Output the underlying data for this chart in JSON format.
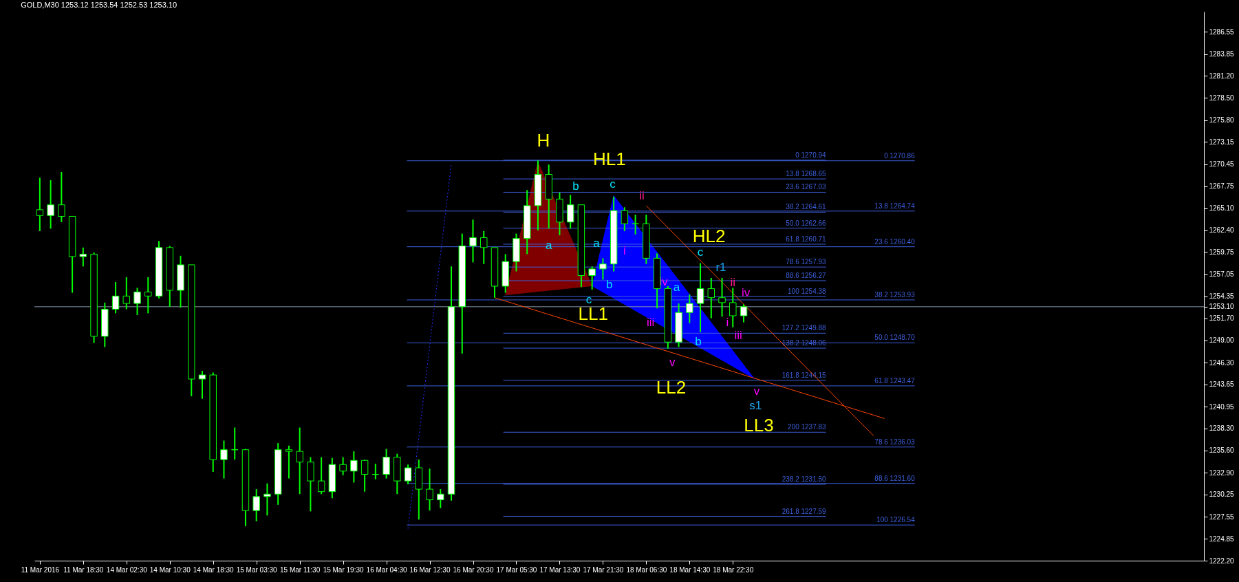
{
  "chart_data": {
    "type": "candlestick",
    "title": "GOLD,M30  1253.12 1253.54 1252.53 1253.10",
    "color": "#00ff00",
    "categories": [
      "11 Mar 2016",
      null,
      null,
      null,
      "11 Mar 18:30",
      null,
      null,
      null,
      "14 Mar 02:30",
      null,
      null,
      null,
      "14 Mar 10:30",
      null,
      null,
      null,
      "14 Mar 18:30",
      null,
      null,
      null,
      "15 Mar 03:30",
      null,
      null,
      null,
      "15 Mar 11:30",
      null,
      null,
      null,
      "15 Mar 19:30",
      null,
      null,
      null,
      "16 Mar 04:30",
      null,
      null,
      null,
      "16 Mar 12:30",
      null,
      null,
      null,
      "16 Mar 20:30",
      null,
      null,
      null,
      "17 Mar 05:30",
      null,
      null,
      null,
      "17 Mar 13:30",
      null,
      null,
      null,
      "17 Mar 21:30",
      null,
      null,
      null,
      "18 Mar 06:30",
      null,
      null,
      null,
      "18 Mar 14:30",
      null,
      null,
      null,
      "18 Mar 22:30",
      null,
      null,
      null,
      null,
      null,
      null,
      null,
      null,
      null,
      null,
      null,
      null,
      null,
      null,
      null,
      null,
      null,
      null,
      null,
      null,
      null,
      null,
      null,
      null,
      null,
      null,
      null,
      null,
      null,
      null,
      null,
      null,
      null,
      null,
      null,
      null,
      null,
      null,
      null,
      null,
      null,
      null,
      null
    ],
    "ohlc": [
      [
        1264.9,
        1268.8,
        1262.3,
        1264.2
      ],
      [
        1264.2,
        1268.5,
        1262.6,
        1265.5
      ],
      [
        1265.5,
        1269.5,
        1263.4,
        1264.1
      ],
      [
        1264.1,
        1264.1,
        1254.8,
        1259.2
      ],
      [
        1259.2,
        1260.3,
        1258.0,
        1259.5
      ],
      [
        1259.5,
        1259.7,
        1248.7,
        1249.5
      ],
      [
        1249.5,
        1253.6,
        1248.2,
        1252.8
      ],
      [
        1252.8,
        1256.1,
        1252.3,
        1254.4
      ],
      [
        1254.4,
        1256.7,
        1252.8,
        1253.5
      ],
      [
        1253.5,
        1255.4,
        1252.1,
        1254.9
      ],
      [
        1254.9,
        1256.7,
        1252.3,
        1254.4
      ],
      [
        1254.4,
        1261.1,
        1254.1,
        1260.3
      ],
      [
        1260.3,
        1260.5,
        1253.1,
        1255.1
      ],
      [
        1255.1,
        1259.3,
        1253.0,
        1258.2
      ],
      [
        1258.2,
        1258.2,
        1242.2,
        1244.3
      ],
      [
        1244.3,
        1245.3,
        1241.9,
        1244.8
      ],
      [
        1244.8,
        1245.1,
        1233.0,
        1234.5
      ],
      [
        1234.5,
        1236.8,
        1232.2,
        1235.7
      ],
      [
        1235.7,
        1238.4,
        1234.5,
        1235.7
      ],
      [
        1235.7,
        1235.8,
        1226.4,
        1228.3
      ],
      [
        1228.3,
        1230.9,
        1227.0,
        1230.0
      ],
      [
        1230.0,
        1231.6,
        1227.7,
        1230.3
      ],
      [
        1230.3,
        1236.5,
        1229.0,
        1235.7
      ],
      [
        1235.7,
        1236.2,
        1232.2,
        1235.5
      ],
      [
        1235.5,
        1238.4,
        1230.3,
        1234.2
      ],
      [
        1234.2,
        1234.8,
        1228.2,
        1231.9
      ],
      [
        1231.9,
        1234.8,
        1230.3,
        1230.6
      ],
      [
        1230.6,
        1234.7,
        1229.8,
        1233.9
      ],
      [
        1233.9,
        1234.8,
        1232.6,
        1233.1
      ],
      [
        1233.1,
        1235.5,
        1231.7,
        1234.4
      ],
      [
        1234.4,
        1234.5,
        1230.6,
        1232.7
      ],
      [
        1232.7,
        1234.0,
        1232.1,
        1232.7
      ],
      [
        1232.7,
        1235.8,
        1232.2,
        1234.8
      ],
      [
        1234.8,
        1235.2,
        1230.3,
        1231.9
      ],
      [
        1231.9,
        1233.9,
        1231.5,
        1233.5
      ],
      [
        1233.5,
        1234.5,
        1227.2,
        1230.9
      ],
      [
        1230.9,
        1233.4,
        1228.3,
        1229.6
      ],
      [
        1229.6,
        1230.9,
        1228.6,
        1230.3
      ],
      [
        1230.3,
        1258.0,
        1229.5,
        1253.1
      ],
      [
        1253.1,
        1262.0,
        1247.4,
        1260.5
      ],
      [
        1260.5,
        1263.7,
        1258.5,
        1261.5
      ],
      [
        1261.5,
        1262.3,
        1258.3,
        1260.3
      ],
      [
        1260.3,
        1260.3,
        1254.2,
        1255.6
      ],
      [
        1255.6,
        1259.5,
        1254.8,
        1258.6
      ],
      [
        1258.6,
        1262.0,
        1257.4,
        1261.4
      ],
      [
        1261.4,
        1267.3,
        1259.5,
        1265.4
      ],
      [
        1265.4,
        1270.9,
        1262.4,
        1269.2
      ],
      [
        1269.2,
        1270.4,
        1262.6,
        1266.2
      ],
      [
        1266.2,
        1267.0,
        1261.8,
        1263.4
      ],
      [
        1263.4,
        1266.7,
        1262.6,
        1265.5
      ],
      [
        1265.5,
        1265.5,
        1255.5,
        1256.9
      ],
      [
        1256.9,
        1258.0,
        1255.2,
        1257.7
      ],
      [
        1257.7,
        1259.0,
        1256.4,
        1258.3
      ],
      [
        1258.3,
        1266.5,
        1257.4,
        1264.8
      ],
      [
        1264.8,
        1265.2,
        1262.3,
        1263.2
      ],
      [
        1263.2,
        1264.3,
        1261.9,
        1263.2
      ],
      [
        1263.2,
        1264.3,
        1258.3,
        1259.0
      ],
      [
        1259.0,
        1259.6,
        1252.9,
        1255.3
      ],
      [
        1255.3,
        1255.6,
        1248.0,
        1248.8
      ],
      [
        1248.8,
        1253.5,
        1248.2,
        1252.4
      ],
      [
        1252.4,
        1254.6,
        1251.1,
        1253.5
      ],
      [
        1253.5,
        1258.4,
        1250.0,
        1255.3
      ],
      [
        1255.3,
        1256.6,
        1251.7,
        1254.2
      ],
      [
        1254.2,
        1256.6,
        1251.9,
        1253.6
      ],
      [
        1253.6,
        1255.4,
        1250.6,
        1252.0
      ],
      [
        1252.0,
        1253.4,
        1251.2,
        1253.1
      ],
      null,
      null,
      null,
      null,
      null,
      null,
      null,
      null,
      null,
      null,
      null,
      null,
      null,
      null,
      null,
      null,
      null,
      null,
      null,
      null,
      null,
      null,
      null,
      null,
      null,
      null,
      null,
      null,
      null,
      null,
      null,
      null,
      null,
      null,
      null,
      null,
      null,
      null,
      null,
      null,
      null,
      null
    ],
    "series": [
      {
        "type": "area",
        "color": "#800000",
        "values": [
          null,
          null,
          null,
          null,
          null,
          null,
          null,
          null,
          null,
          null,
          null,
          null,
          null,
          null,
          null,
          null,
          null,
          null,
          null,
          null,
          null,
          null,
          null,
          null,
          null,
          null,
          null,
          null,
          null,
          null,
          null,
          null,
          null,
          null,
          null,
          null,
          null,
          null,
          null,
          null,
          null,
          null,
          null,
          1254.5,
          null,
          null,
          1270.7,
          null,
          null,
          null,
          null,
          1255.6,
          null,
          null,
          null,
          null,
          null,
          null,
          null,
          null,
          null,
          null,
          null,
          null,
          null,
          null,
          null,
          null,
          null,
          null,
          null,
          null,
          null,
          null,
          null,
          null,
          null,
          null,
          null,
          null,
          null,
          null,
          null,
          null,
          null,
          null,
          null,
          null,
          null,
          null,
          null,
          null,
          null,
          null,
          null,
          null,
          null,
          null,
          null,
          null,
          null,
          null,
          null,
          null,
          null,
          null,
          null,
          null
        ]
      },
      {
        "type": "area",
        "color": "#0000ff",
        "values": [
          null,
          null,
          null,
          null,
          null,
          null,
          null,
          null,
          null,
          null,
          null,
          null,
          null,
          null,
          null,
          null,
          null,
          null,
          null,
          null,
          null,
          null,
          null,
          null,
          null,
          null,
          null,
          null,
          null,
          null,
          null,
          null,
          null,
          null,
          null,
          null,
          null,
          null,
          null,
          null,
          null,
          null,
          null,
          null,
          null,
          null,
          null,
          null,
          null,
          null,
          null,
          1255.6,
          null,
          1266.6,
          null,
          null,
          null,
          null,
          null,
          null,
          null,
          null,
          null,
          null,
          null,
          null,
          1244.3,
          null,
          null,
          null,
          null,
          null,
          null,
          null,
          null,
          null,
          null,
          null,
          null,
          null,
          null,
          null,
          null,
          null,
          null,
          null,
          null,
          null,
          null,
          null,
          null,
          null,
          null,
          null,
          null,
          null,
          null,
          null,
          null,
          null,
          null,
          null,
          null,
          null,
          null,
          null,
          null,
          null
        ]
      },
      {
        "type": "line",
        "color": "#2233ff",
        "line_style": "dotted",
        "values": [
          null,
          null,
          null,
          null,
          null,
          null,
          null,
          null,
          null,
          null,
          null,
          null,
          null,
          null,
          null,
          null,
          null,
          null,
          null,
          null,
          null,
          null,
          null,
          null,
          null,
          null,
          null,
          null,
          null,
          null,
          null,
          null,
          null,
          null,
          1226.1,
          null,
          null,
          null,
          1270.5,
          null,
          null,
          null,
          null,
          null,
          null,
          null,
          null,
          null,
          null,
          null,
          null,
          null,
          null,
          null,
          null,
          null,
          null,
          null,
          null,
          null,
          null,
          null,
          null,
          null,
          null,
          null,
          null,
          null,
          null,
          null,
          null,
          null,
          null,
          null,
          null,
          null,
          null,
          null,
          null,
          null,
          null,
          null,
          null,
          null,
          null,
          null,
          null,
          null,
          null,
          null,
          null,
          null,
          null,
          null,
          null,
          null,
          null,
          null,
          null,
          null,
          null,
          null,
          null,
          null,
          null,
          null,
          null,
          null
        ]
      },
      {
        "type": "line",
        "color": "#ff4500",
        "line_style": "solid",
        "values": [
          null,
          null,
          null,
          null,
          null,
          null,
          null,
          null,
          null,
          null,
          null,
          null,
          null,
          null,
          null,
          null,
          null,
          null,
          null,
          null,
          null,
          null,
          null,
          null,
          null,
          null,
          null,
          null,
          null,
          null,
          null,
          null,
          null,
          null,
          null,
          null,
          null,
          null,
          null,
          null,
          null,
          null,
          1254.2,
          null,
          null,
          null,
          null,
          null,
          null,
          null,
          null,
          null,
          null,
          null,
          null,
          null,
          null,
          null,
          null,
          null,
          null,
          null,
          null,
          null,
          null,
          null,
          null,
          null,
          null,
          null,
          null,
          null,
          null,
          null,
          null,
          null,
          null,
          null,
          1239.5,
          null,
          null,
          null,
          null,
          null,
          null,
          null,
          null,
          null,
          null,
          null,
          null,
          null,
          null,
          null,
          null,
          null,
          null,
          null,
          null,
          null,
          null,
          null,
          null,
          null,
          null,
          null,
          null,
          null
        ]
      },
      {
        "type": "line",
        "color": "#ff4500",
        "line_style": "solid",
        "values": [
          null,
          null,
          null,
          null,
          null,
          null,
          null,
          null,
          null,
          null,
          null,
          null,
          null,
          null,
          null,
          null,
          null,
          null,
          null,
          null,
          null,
          null,
          null,
          null,
          null,
          null,
          null,
          null,
          null,
          null,
          null,
          null,
          null,
          null,
          null,
          null,
          null,
          null,
          null,
          null,
          null,
          null,
          null,
          null,
          null,
          null,
          null,
          null,
          null,
          null,
          null,
          null,
          null,
          null,
          null,
          null,
          1265.4,
          null,
          null,
          null,
          null,
          null,
          null,
          null,
          null,
          null,
          null,
          null,
          null,
          null,
          null,
          null,
          null,
          null,
          null,
          null,
          null,
          1237.4,
          null,
          null,
          null,
          null,
          null,
          null,
          null,
          null,
          null,
          null,
          null,
          null,
          null,
          null,
          null,
          null,
          null,
          null,
          null,
          null,
          null,
          null,
          null,
          null,
          null,
          null,
          null,
          null,
          null,
          null
        ]
      }
    ],
    "ylim": [
      1222.2,
      1289.0
    ],
    "yticks": [
      1286.55,
      1283.85,
      {
        "value": 1281.2,
        "label": "1281.20"
      },
      {
        "value": 1278.5,
        "label": "1278.50"
      },
      {
        "value": 1275.8,
        "label": "1275.80"
      },
      1273.15,
      1270.45,
      1267.75,
      {
        "value": 1265.1,
        "label": "1265.10"
      },
      {
        "value": 1262.4,
        "label": "1262.40"
      },
      1259.75,
      1257.05,
      1254.35,
      {
        "value": 1253.1,
        "label": "1253.10"
      },
      {
        "value": 1251.7,
        "label": "1251.70"
      },
      {
        "value": 1249,
        "label": "1249.00"
      },
      {
        "value": 1246.3,
        "label": "1246.30"
      },
      1243.65,
      1240.95,
      {
        "value": 1238.3,
        "label": "1238.30"
      },
      {
        "value": 1235.6,
        "label": "1235.60"
      },
      {
        "value": 1232.9,
        "label": "1232.90"
      },
      1230.25,
      1227.55,
      1224.85,
      {
        "value": 1222.2,
        "label": "1222.20"
      }
    ],
    "ref_lines": [
      {
        "axis": "y",
        "value": 1270.94,
        "label": "0 1270.94",
        "color": "#3d5fdc"
      },
      {
        "axis": "y",
        "value": 1268.65,
        "label": "13.8 1268.65",
        "color": "#3d5fdc"
      },
      {
        "axis": "y",
        "value": 1267.03,
        "label": "23.6 1267.03",
        "color": "#3d5fdc"
      },
      {
        "axis": "y",
        "value": 1264.61,
        "label": "38.2 1264.61",
        "color": "#3d5fdc"
      },
      {
        "axis": "y",
        "value": 1262.66,
        "label": "50.0 1262.66",
        "color": "#3d5fdc"
      },
      {
        "axis": "y",
        "value": 1260.71,
        "label": "61.8 1260.71",
        "color": "#3d5fdc"
      },
      {
        "axis": "y",
        "value": 1257.93,
        "label": "78.6 1257.93",
        "color": "#3d5fdc"
      },
      {
        "axis": "y",
        "value": 1256.27,
        "label": "88.6 1256.27",
        "color": "#3d5fdc"
      },
      {
        "axis": "y",
        "value": 1254.38,
        "label": "100 1254.38",
        "color": "#3d5fdc"
      },
      {
        "axis": "y",
        "value": 1249.88,
        "label": "127.2 1249.88",
        "color": "#3d5fdc"
      },
      {
        "axis": "y",
        "value": 1248.06,
        "label": "138.2 1248.06",
        "color": "#3d5fdc"
      },
      {
        "axis": "y",
        "value": 1244.15,
        "label": "161.8 1244.15",
        "color": "#3d5fdc"
      },
      {
        "axis": "y",
        "value": 1237.83,
        "label": "200 1237.83",
        "color": "#3d5fdc"
      },
      {
        "axis": "y",
        "value": 1231.5,
        "label": "238.2 1231.50",
        "color": "#3d5fdc"
      },
      {
        "axis": "y",
        "value": 1227.59,
        "label": "261.8 1227.59",
        "color": "#3d5fdc"
      },
      {
        "axis": "y",
        "value": 1270.86,
        "label": "0 1270.86",
        "color": "#3d5fdc"
      },
      {
        "axis": "y",
        "value": 1264.74,
        "label": "13.8 1264.74",
        "color": "#3d5fdc"
      },
      {
        "axis": "y",
        "value": 1260.4,
        "label": "23.6 1260.40",
        "color": "#3d5fdc"
      },
      {
        "axis": "y",
        "value": 1253.93,
        "label": "38.2 1253.93",
        "color": "#3d5fdc"
      },
      {
        "axis": "y",
        "value": 1248.7,
        "label": "50.0 1248.70",
        "color": "#3d5fdc"
      },
      {
        "axis": "y",
        "value": 1243.47,
        "label": "61.8 1243.47",
        "color": "#3d5fdc"
      },
      {
        "axis": "y",
        "value": 1236.03,
        "label": "78.6 1236.03",
        "color": "#3d5fdc"
      },
      {
        "axis": "y",
        "value": 1231.6,
        "label": "88.6 1231.60",
        "color": "#3d5fdc"
      },
      {
        "axis": "y",
        "value": 1226.54,
        "label": "100 1226.54",
        "color": "#3d5fdc"
      },
      {
        "axis": "y",
        "value": 1253.1,
        "color": "#8898a8"
      }
    ],
    "annotations": [
      "H",
      "HL1",
      "LL1",
      "HL2",
      "LL2",
      "LL3",
      "b",
      "c",
      "a",
      "a",
      "b",
      "c",
      "c",
      "r1",
      "a",
      "b",
      "s1",
      "ii",
      "i",
      "iv",
      "iii",
      "v",
      "ii",
      "iv",
      "i",
      "iii",
      "v"
    ]
  }
}
